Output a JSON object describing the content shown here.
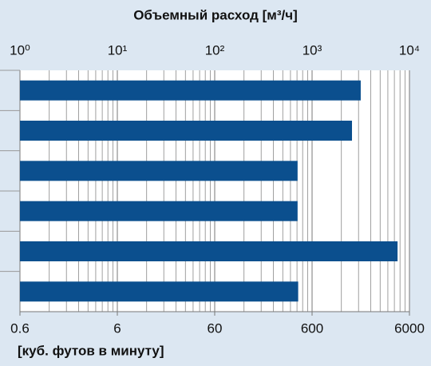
{
  "chart_data": {
    "type": "bar",
    "orientation": "horizontal",
    "title": "Объемный расход [м³/ч]",
    "x2_label": "[куб. футов в минуту]",
    "categories": [
      null,
      null,
      null,
      null,
      null,
      null
    ],
    "values": [
      3160,
      2570,
      710,
      710,
      7550,
      720
    ],
    "color": "#0b4f8e",
    "xscale": "log",
    "xlim": [
      1,
      10000
    ],
    "xticks": [
      {
        "value": 1,
        "label": "10⁰"
      },
      {
        "value": 10,
        "label": "10¹"
      },
      {
        "value": 100,
        "label": "10²"
      },
      {
        "value": 1000,
        "label": "10³"
      },
      {
        "value": 10000,
        "label": "10⁴"
      }
    ],
    "x2lim": [
      0.6,
      6000
    ],
    "x2ticks": [
      0.6,
      6,
      60,
      600,
      6000
    ],
    "grid": true
  }
}
